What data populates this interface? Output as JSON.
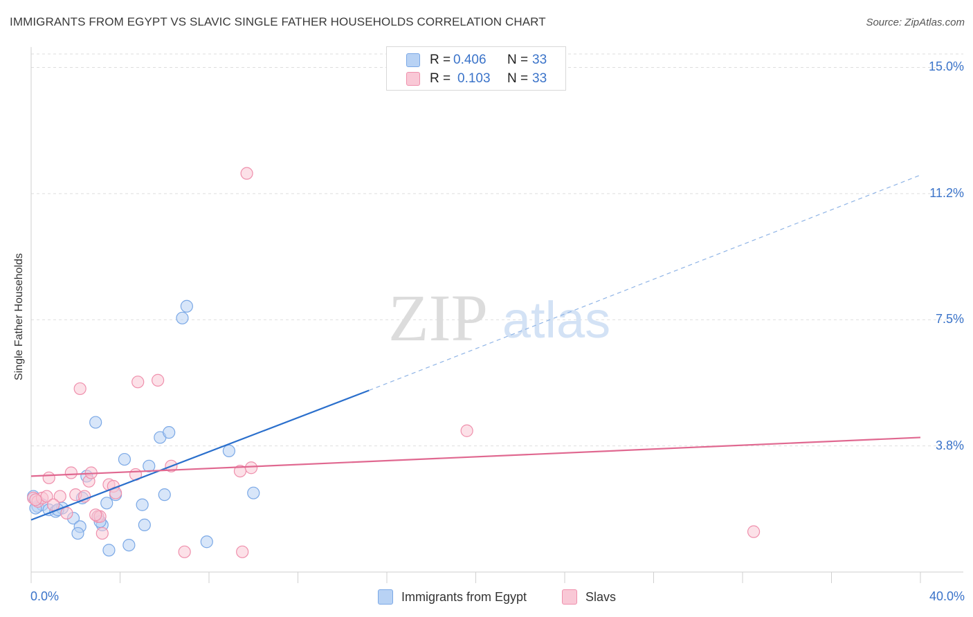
{
  "header": {
    "title": "IMMIGRANTS FROM EGYPT VS SLAVIC SINGLE FATHER HOUSEHOLDS CORRELATION CHART",
    "source": "Source: ZipAtlas.com"
  },
  "watermark": {
    "zip": "ZIP",
    "atlas": "atlas"
  },
  "legend": {
    "rows": [
      {
        "r_label": "R =",
        "r_value": "0.406",
        "n_label": "N =",
        "n_value": "33",
        "color": "#a8c8f0"
      },
      {
        "r_label": "R =",
        "r_value": "0.103",
        "n_label": "N =",
        "n_value": "33",
        "color": "#f6b8cc"
      }
    ]
  },
  "bottom_legend": [
    {
      "label": "Immigrants from Egypt",
      "color": "#b8d2f4"
    },
    {
      "label": "Slavs",
      "color": "#f9c8d6"
    }
  ],
  "chart_data": {
    "type": "scatter",
    "title": "IMMIGRANTS FROM EGYPT VS SLAVIC SINGLE FATHER HOUSEHOLDS CORRELATION CHART",
    "xlabel": "",
    "ylabel": "Single Father Households",
    "xlim": [
      0,
      40
    ],
    "ylim": [
      0,
      15.4
    ],
    "x_tick_labels": [
      {
        "value": 0,
        "label": "0.0%"
      },
      {
        "value": 40,
        "label": "40.0%"
      }
    ],
    "y_tick_labels": [
      {
        "value": 3.75,
        "label": "3.8%"
      },
      {
        "value": 7.5,
        "label": "7.5%"
      },
      {
        "value": 11.25,
        "label": "11.2%"
      },
      {
        "value": 15.0,
        "label": "15.0%"
      }
    ],
    "x_minor_ticks": [
      0,
      4,
      8,
      12,
      16,
      20,
      24,
      28,
      32,
      36,
      40
    ],
    "series": [
      {
        "name": "Immigrants from Egypt",
        "color": "#7aa8e6",
        "fill": "#b8d2f4",
        "trend": {
          "x0": 0,
          "y0": 1.55,
          "x1": 15.2,
          "y1": 5.4,
          "dash_to_x": 40,
          "dash_to_y": 11.8,
          "color": "#2a6fcc"
        },
        "points": [
          [
            0.1,
            2.25
          ],
          [
            0.3,
            1.95
          ],
          [
            0.5,
            2.0
          ],
          [
            0.8,
            1.85
          ],
          [
            1.1,
            1.8
          ],
          [
            1.4,
            1.9
          ],
          [
            2.3,
            2.2
          ],
          [
            2.5,
            2.85
          ],
          [
            1.9,
            1.6
          ],
          [
            2.2,
            1.35
          ],
          [
            2.1,
            1.15
          ],
          [
            3.0,
            1.65
          ],
          [
            3.2,
            1.4
          ],
          [
            3.4,
            2.05
          ],
          [
            3.5,
            0.65
          ],
          [
            2.9,
            4.45
          ],
          [
            3.8,
            2.3
          ],
          [
            4.2,
            3.35
          ],
          [
            4.4,
            0.8
          ],
          [
            5.0,
            2.0
          ],
          [
            5.1,
            1.4
          ],
          [
            5.3,
            3.15
          ],
          [
            5.8,
            4.0
          ],
          [
            6.0,
            2.3
          ],
          [
            6.2,
            4.15
          ],
          [
            6.8,
            7.55
          ],
          [
            7.0,
            7.9
          ],
          [
            7.9,
            0.9
          ],
          [
            8.9,
            3.6
          ],
          [
            10.0,
            2.35
          ],
          [
            0.2,
            1.9
          ],
          [
            1.2,
            1.85
          ],
          [
            3.1,
            1.5
          ]
        ]
      },
      {
        "name": "Slavs",
        "color": "#ef8fac",
        "fill": "#f9c8d6",
        "trend": {
          "x0": 0,
          "y0": 2.85,
          "x1": 40,
          "y1": 4.0,
          "color": "#e06890"
        },
        "points": [
          [
            0.1,
            2.2
          ],
          [
            0.3,
            2.1
          ],
          [
            0.5,
            2.2
          ],
          [
            0.7,
            2.25
          ],
          [
            0.8,
            2.8
          ],
          [
            1.3,
            2.25
          ],
          [
            1.6,
            1.75
          ],
          [
            1.8,
            2.95
          ],
          [
            2.0,
            2.3
          ],
          [
            2.2,
            5.45
          ],
          [
            2.4,
            2.25
          ],
          [
            2.6,
            2.7
          ],
          [
            2.7,
            2.95
          ],
          [
            3.0,
            1.65
          ],
          [
            3.1,
            1.65
          ],
          [
            3.2,
            1.15
          ],
          [
            3.5,
            2.6
          ],
          [
            3.7,
            2.55
          ],
          [
            3.8,
            2.35
          ],
          [
            4.7,
            2.9
          ],
          [
            4.8,
            5.65
          ],
          [
            5.7,
            5.7
          ],
          [
            6.3,
            3.15
          ],
          [
            6.9,
            0.6
          ],
          [
            9.4,
            3.0
          ],
          [
            9.5,
            0.6
          ],
          [
            9.7,
            11.85
          ],
          [
            9.9,
            3.1
          ],
          [
            19.6,
            4.2
          ],
          [
            32.5,
            1.2
          ],
          [
            0.2,
            2.15
          ],
          [
            1.0,
            2.0
          ],
          [
            2.9,
            1.7
          ]
        ]
      }
    ]
  }
}
